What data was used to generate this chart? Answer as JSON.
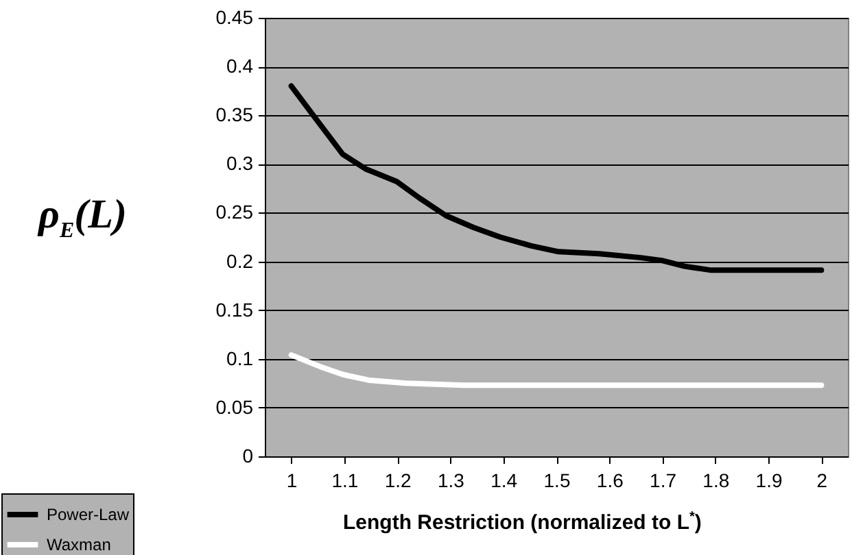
{
  "chart_data": {
    "type": "line",
    "xlabel": "Length Restriction (normalized to L$^{*}$)",
    "ylabel": "ρ$_{E}$(L)",
    "xlim": [
      0.95,
      2.05
    ],
    "xticks": [
      1,
      1.1,
      1.2,
      1.3,
      1.4,
      1.5,
      1.6,
      1.7,
      1.8,
      1.9,
      2
    ],
    "ylim": [
      0,
      0.45
    ],
    "yticks": [
      0,
      0.05,
      0.1,
      0.15,
      0.2,
      0.25,
      0.3,
      0.35,
      0.4,
      0.45
    ],
    "grid": "y",
    "legend": "bottom left",
    "line_style": "solid",
    "marker": "none",
    "series": [
      {
        "name": "Power-Law",
        "color": "#000000",
        "x": [
          1,
          1.051,
          1.097,
          1.14,
          1.199,
          1.242,
          1.292,
          1.343,
          1.394,
          1.453,
          1.504,
          1.58,
          1.657,
          1.699,
          1.742,
          1.792,
          2
        ],
        "values": [
          0.38,
          0.343,
          0.31,
          0.295,
          0.282,
          0.265,
          0.247,
          0.235,
          0.225,
          0.216,
          0.21,
          0.208,
          0.204,
          0.201,
          0.195,
          0.191,
          0.191
        ]
      },
      {
        "name": "Waxman",
        "color": "#ffffff",
        "x": [
          1,
          1.055,
          1.097,
          1.148,
          1.216,
          1.326,
          2
        ],
        "values": [
          0.104,
          0.092,
          0.084,
          0.078,
          0.075,
          0.073,
          0.073
        ]
      }
    ]
  }
}
